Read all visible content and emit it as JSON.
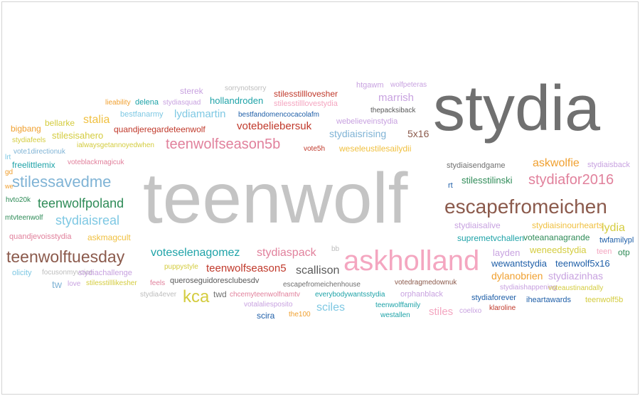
{
  "words": [
    {
      "text": "stydia",
      "color": "#707070"
    },
    {
      "text": "teenwolf",
      "color": "#c4c4c4"
    },
    {
      "text": "askholland",
      "color": "#f4a6c0"
    },
    {
      "text": "escapefromeichen",
      "color": "#8b5a4c"
    },
    {
      "text": "teenwolftuesday",
      "color": "#8b5a4c"
    },
    {
      "text": "stilessavedme",
      "color": "#7fb3d5"
    },
    {
      "text": "teenwolfseason5b",
      "color": "#e1819c"
    },
    {
      "text": "stydiafor2016",
      "color": "#e1819c"
    },
    {
      "text": "teenwolfpoland",
      "color": "#2e8b57"
    },
    {
      "text": "stydiaisreal",
      "color": "#7ec8e3"
    },
    {
      "text": "voteselenagomez",
      "color": "#1fa3a8"
    },
    {
      "text": "stydiaspack",
      "color": "#e1819c"
    },
    {
      "text": "kca",
      "color": "#d4cc3f"
    },
    {
      "text": "teenwolfseason5",
      "color": "#c0392b"
    },
    {
      "text": "scallison",
      "color": "#5a5a5a"
    },
    {
      "text": "askwolfie",
      "color": "#f0a030"
    },
    {
      "text": "stalia",
      "color": "#f0c040"
    },
    {
      "text": "lydiamartin",
      "color": "#7ec8e3"
    },
    {
      "text": "votebeliebersuk",
      "color": "#c0392b"
    },
    {
      "text": "stydiaisrising",
      "color": "#7fb3d5"
    },
    {
      "text": "5x16",
      "color": "#8b5a4c"
    },
    {
      "text": "marrish",
      "color": "#c8a2e0"
    },
    {
      "text": "stilesstilinski",
      "color": "#2e8b57"
    },
    {
      "text": "lydia",
      "color": "#d4cc3f"
    },
    {
      "text": "stydiazinhas",
      "color": "#c8a2e0"
    },
    {
      "text": "sciles",
      "color": "#7ec8e3"
    },
    {
      "text": "stiles",
      "color": "#f4a6c0"
    },
    {
      "text": "dylanobrien",
      "color": "#f0a030"
    },
    {
      "text": "layden",
      "color": "#c8a2e0"
    },
    {
      "text": "weneedstydia",
      "color": "#d4cc3f"
    },
    {
      "text": "wewantstydia",
      "color": "#1f5fa8"
    },
    {
      "text": "teenwolf5x16",
      "color": "#1f5fa8"
    },
    {
      "text": "stydiaisinourhearts",
      "color": "#f0c040"
    },
    {
      "text": "stydiaisalive",
      "color": "#c8a2e0"
    },
    {
      "text": "stydiaisendgame",
      "color": "#707070"
    },
    {
      "text": "voteananagrande",
      "color": "#2e8b57"
    },
    {
      "text": "supremetvchallen",
      "color": "#1fa3a8"
    },
    {
      "text": "twfamilypl",
      "color": "#1f5fa8"
    },
    {
      "text": "teen",
      "color": "#f4a6c0"
    },
    {
      "text": "otp",
      "color": "#2e8b57"
    },
    {
      "text": "stydiaisback",
      "color": "#c8a2e0"
    },
    {
      "text": "rt",
      "color": "#1f5fa8"
    },
    {
      "text": "sterek",
      "color": "#c8a2e0"
    },
    {
      "text": "sorrynotsorry",
      "color": "#bdbdbd"
    },
    {
      "text": "stilesstilllovesher",
      "color": "#c0392b"
    },
    {
      "text": "stilesstilllovestydia",
      "color": "#f4a6c0"
    },
    {
      "text": "hollandroden",
      "color": "#1fa3a8"
    },
    {
      "text": "stydiasquad",
      "color": "#c8a2e0"
    },
    {
      "text": "delena",
      "color": "#1fa3a8"
    },
    {
      "text": "lieability",
      "color": "#f0a030"
    },
    {
      "text": "htgawm",
      "color": "#c8a2e0"
    },
    {
      "text": "wolfpeteras",
      "color": "#c8a2e0"
    },
    {
      "text": "thepacksiback",
      "color": "#5a5a5a"
    },
    {
      "text": "webelieveinstydia",
      "color": "#c8a2e0"
    },
    {
      "text": "bestfandomencocacolafm",
      "color": "#1f5fa8"
    },
    {
      "text": "bestfanarmy",
      "color": "#7ec8e3"
    },
    {
      "text": "bellarke",
      "color": "#d4cc3f"
    },
    {
      "text": "bigbang",
      "color": "#f0a030"
    },
    {
      "text": "stilesisahero",
      "color": "#d4cc3f"
    },
    {
      "text": "quandjeregardeteenwolf",
      "color": "#c0392b"
    },
    {
      "text": "stydiafeels",
      "color": "#d4cc3f"
    },
    {
      "text": "vote1directionuk",
      "color": "#7fb3d5"
    },
    {
      "text": "ialwaysgetannoyedwhen",
      "color": "#d4cc3f"
    },
    {
      "text": "voteblackmagicuk",
      "color": "#e1819c"
    },
    {
      "text": "vote5h",
      "color": "#c0392b"
    },
    {
      "text": "weseleustilesailydii",
      "color": "#f0c040"
    },
    {
      "text": "lrt",
      "color": "#7ec8e3"
    },
    {
      "text": "freelittlemix",
      "color": "#1fa3a8"
    },
    {
      "text": "gd",
      "color": "#f0a030"
    },
    {
      "text": "we",
      "color": "#f0a030"
    },
    {
      "text": "hvto20k",
      "color": "#2e8b57"
    },
    {
      "text": "mtvteenwolf",
      "color": "#2e8b57"
    },
    {
      "text": "quandjevoisstydia",
      "color": "#e1819c"
    },
    {
      "text": "askmagcult",
      "color": "#f0c040"
    },
    {
      "text": "olicity",
      "color": "#7ec8e3"
    },
    {
      "text": "focusonmyvoice",
      "color": "#bdbdbd"
    },
    {
      "text": "stydiachallenge",
      "color": "#c8a2e0"
    },
    {
      "text": "tw",
      "color": "#7fb3d5"
    },
    {
      "text": "love",
      "color": "#c8a2e0"
    },
    {
      "text": "stilesstilllikesher",
      "color": "#d4cc3f"
    },
    {
      "text": "feels",
      "color": "#e1819c"
    },
    {
      "text": "stydia4ever",
      "color": "#bdbdbd"
    },
    {
      "text": "puppystyle",
      "color": "#d4cc3f"
    },
    {
      "text": "queroseguidoresclubesdv",
      "color": "#5a5a5a"
    },
    {
      "text": "twd",
      "color": "#707070"
    },
    {
      "text": "chcemyteenwolfnamtv",
      "color": "#e1819c"
    },
    {
      "text": "everybodywantsstydia",
      "color": "#1fa3a8"
    },
    {
      "text": "orphanblack",
      "color": "#c8a2e0"
    },
    {
      "text": "escapefromeichenhouse",
      "color": "#707070"
    },
    {
      "text": "votalaliesposito",
      "color": "#c8a2e0"
    },
    {
      "text": "votedragmedownuk",
      "color": "#8b5a4c"
    },
    {
      "text": "teenwolffamily",
      "color": "#1fa3a8"
    },
    {
      "text": "westallen",
      "color": "#1fa3a8"
    },
    {
      "text": "scira",
      "color": "#1f5fa8"
    },
    {
      "text": "the100",
      "color": "#f0a030"
    },
    {
      "text": "bb",
      "color": "#bdbdbd"
    },
    {
      "text": "stydiaishappening",
      "color": "#c8a2e0"
    },
    {
      "text": "voteaustinandally",
      "color": "#d4cc3f"
    },
    {
      "text": "stydiaforever",
      "color": "#1f5fa8"
    },
    {
      "text": "iheartawards",
      "color": "#1f5fa8"
    },
    {
      "text": "teenwolf5b",
      "color": "#d4cc3f"
    },
    {
      "text": "coelixo",
      "color": "#c8a2e0"
    },
    {
      "text": "klaroline",
      "color": "#c0392b"
    }
  ]
}
